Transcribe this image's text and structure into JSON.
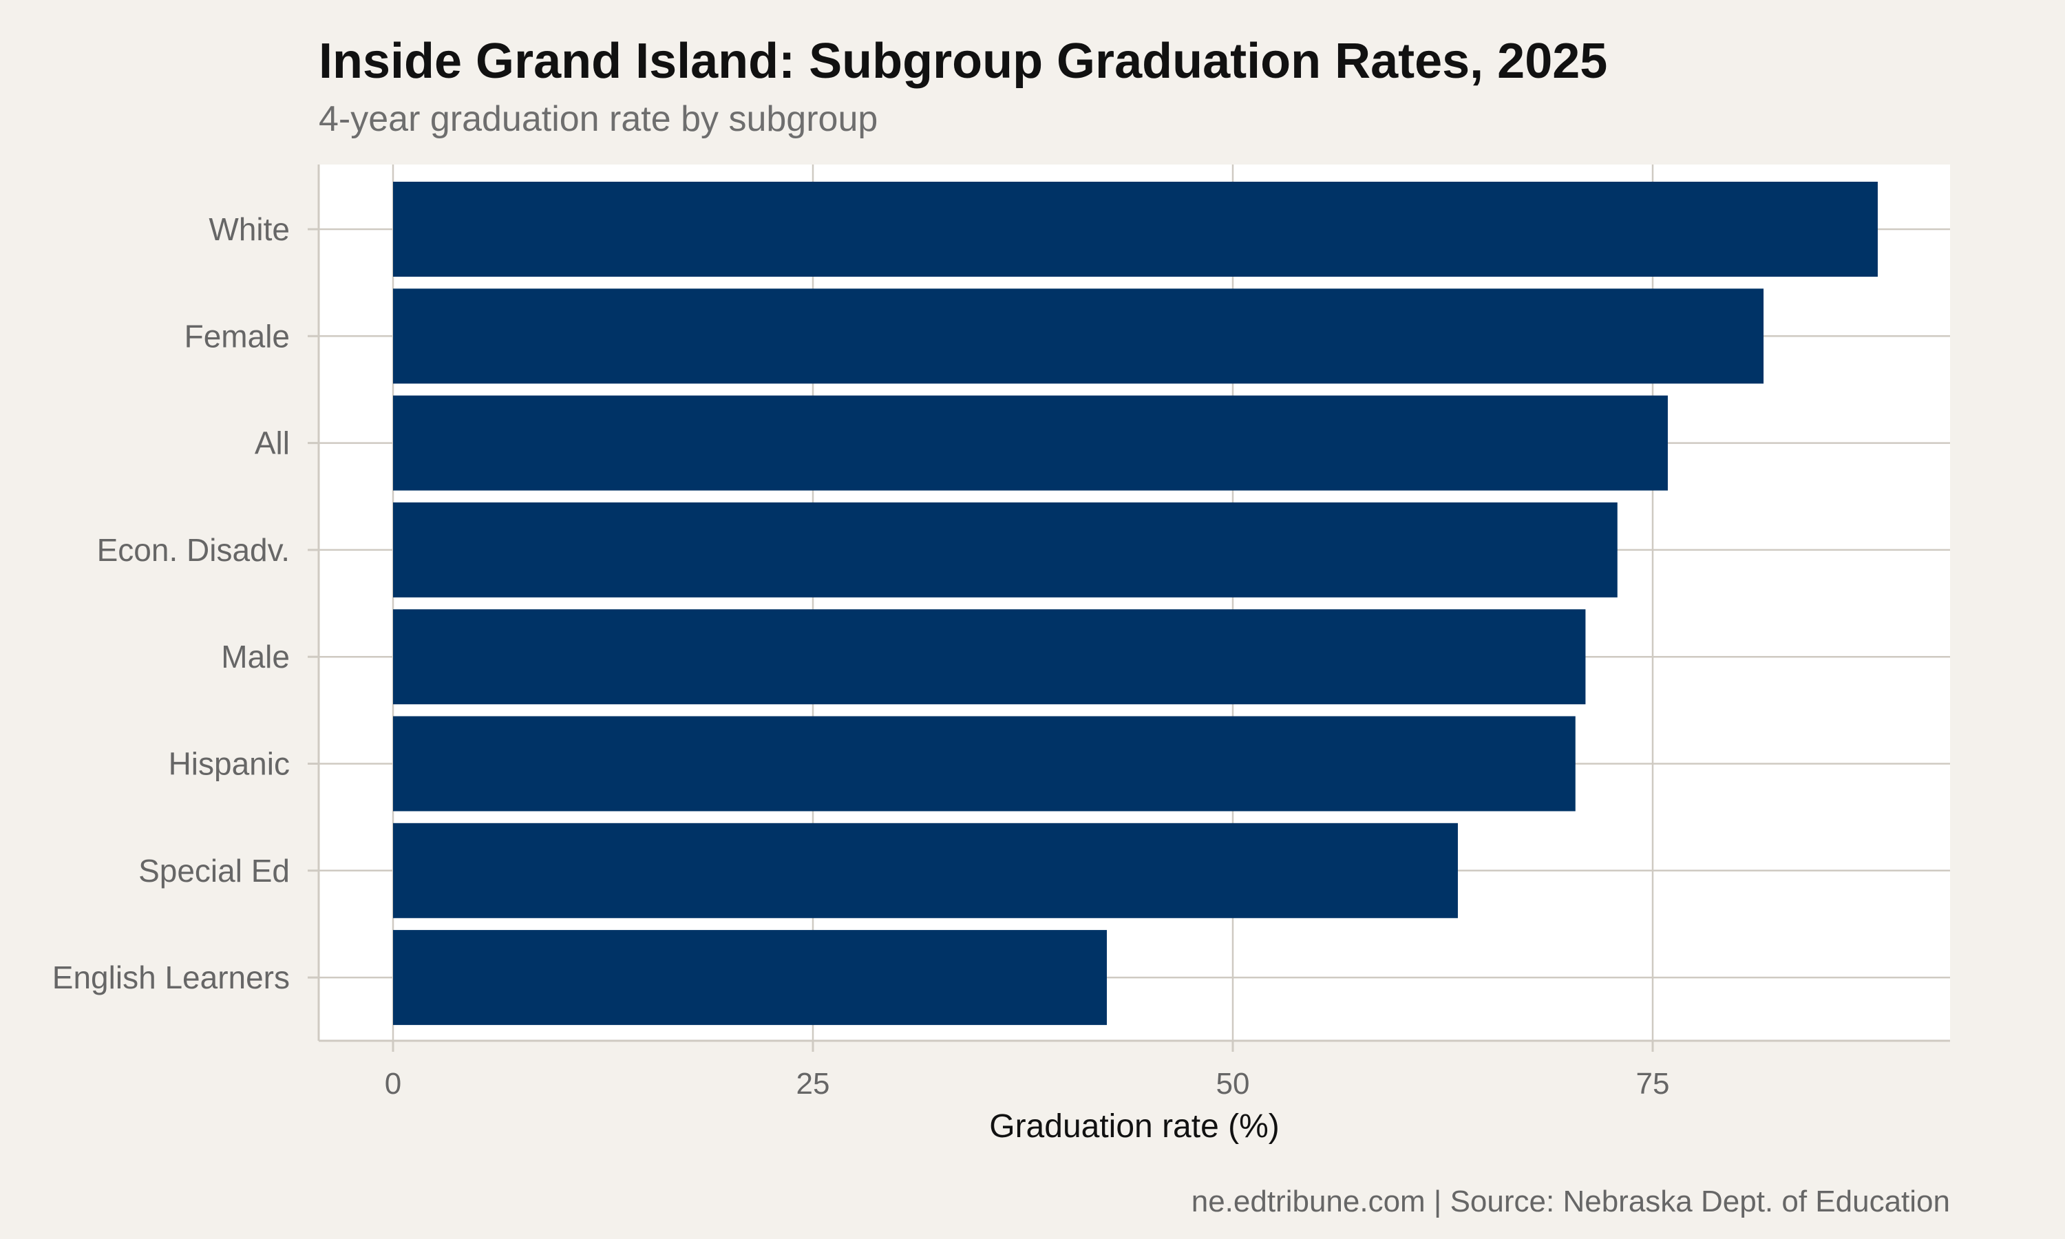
{
  "chart_data": {
    "type": "bar",
    "orientation": "horizontal",
    "title": "Inside Grand Island: Subgroup Graduation Rates, 2025",
    "subtitle": "4-year graduation rate by subgroup",
    "categories": [
      "White",
      "Female",
      "All",
      "Econ. Disadv.",
      "Male",
      "Hispanic",
      "Special Ed",
      "English Learners"
    ],
    "values": [
      88.4,
      81.6,
      75.9,
      72.9,
      71.0,
      70.4,
      63.4,
      42.5
    ],
    "xlabel": "Graduation rate (%)",
    "ylabel": "",
    "xlim": [
      0,
      93
    ],
    "xticks": [
      0,
      25,
      50,
      75
    ],
    "xtick_labels": [
      "0",
      "25",
      "50",
      "75"
    ],
    "grid": true,
    "legend": "none",
    "caption": "ne.edtribune.com | Source: Nebraska Dept. of Education",
    "colors": {
      "bar": "#003366",
      "panel": "#ffffff",
      "background": "#f4f1ec",
      "grid": "#cfcac2"
    }
  }
}
